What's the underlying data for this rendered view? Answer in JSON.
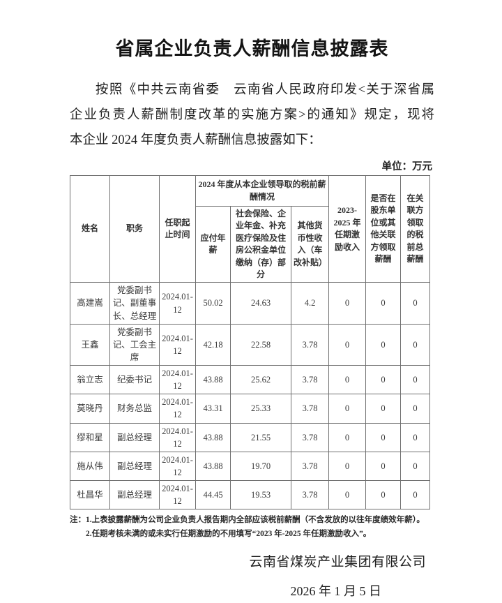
{
  "page": {
    "title": "省属企业负责人薪酬信息披露表",
    "intro_lines": [
      "按照《中共云南省委　云南省人民政府印发<关于深省属",
      "企业负责人薪酬制度改革的实施方案>的通知》规定，现将",
      "本企业 2024 年度负责人薪酬信息披露如下："
    ],
    "unit_label": "单位：万元"
  },
  "colors": {
    "text": "#2b2b2b",
    "table_border": "#6f6f6f",
    "background": "#ffffff"
  },
  "table": {
    "headers": {
      "name": "姓名",
      "position": "职务",
      "term": "任职起止时间",
      "group_2024": "2024 年度从本企业领导取的税前薪酬情况",
      "annual_salary": "应付年薪",
      "social_insurance": "社会保险、企业年金、补充医疗保险及住房公积金单位缴纳（存）部分",
      "other_income": "其他货币性收入（车改补贴）",
      "term_incentive": "2023-2025 年任期激励收入",
      "shareholder_pay": "是否在股东单位或其他关联方领取薪酬",
      "related_party_pay": "在关联方领取的税前总薪酬"
    },
    "rows": [
      {
        "name": "高建嵩",
        "position": "党委副书记、副董事长、总经理",
        "term": "2024.01-12",
        "annual_salary": "50.02",
        "social_insurance": "24.63",
        "other_income": "4.2",
        "term_incentive": "0",
        "shareholder_pay": "0",
        "related_party_pay": "0"
      },
      {
        "name": "王鑫",
        "position": "党委副书记、工会主席",
        "term": "2024.01-12",
        "annual_salary": "42.18",
        "social_insurance": "22.58",
        "other_income": "3.78",
        "term_incentive": "0",
        "shareholder_pay": "0",
        "related_party_pay": "0"
      },
      {
        "name": "翁立志",
        "position": "纪委书记",
        "term": "2024.01-12",
        "annual_salary": "43.88",
        "social_insurance": "25.62",
        "other_income": "3.78",
        "term_incentive": "0",
        "shareholder_pay": "0",
        "related_party_pay": "0"
      },
      {
        "name": "莫晓丹",
        "position": "财务总监",
        "term": "2024.01-12",
        "annual_salary": "43.31",
        "social_insurance": "25.33",
        "other_income": "3.78",
        "term_incentive": "0",
        "shareholder_pay": "0",
        "related_party_pay": "0"
      },
      {
        "name": "缪和星",
        "position": "副总经理",
        "term": "2024.01-12",
        "annual_salary": "43.88",
        "social_insurance": "21.55",
        "other_income": "3.78",
        "term_incentive": "0",
        "shareholder_pay": "0",
        "related_party_pay": "0"
      },
      {
        "name": "施从伟",
        "position": "副总经理",
        "term": "2024.01-12",
        "annual_salary": "43.88",
        "social_insurance": "19.70",
        "other_income": "3.78",
        "term_incentive": "0",
        "shareholder_pay": "0",
        "related_party_pay": "0"
      },
      {
        "name": "杜昌华",
        "position": "副总经理",
        "term": "2024.01-12",
        "annual_salary": "44.45",
        "social_insurance": "19.53",
        "other_income": "3.78",
        "term_incentive": "0",
        "shareholder_pay": "0",
        "related_party_pay": "0"
      }
    ]
  },
  "notes": {
    "line1": "注：1.上表披露薪酬为公司企业负责人报告期内全部应该税前薪酬（不含发放的以往年度绩效年薪）。",
    "line2": "2.任期考核未满的或未实行任期激励的不用填写“2023 年-2025 年任期激励收入”。"
  },
  "footer": {
    "company": "云南省煤炭产业集团有限公司",
    "date": "2026 年 1 月 5 日"
  }
}
